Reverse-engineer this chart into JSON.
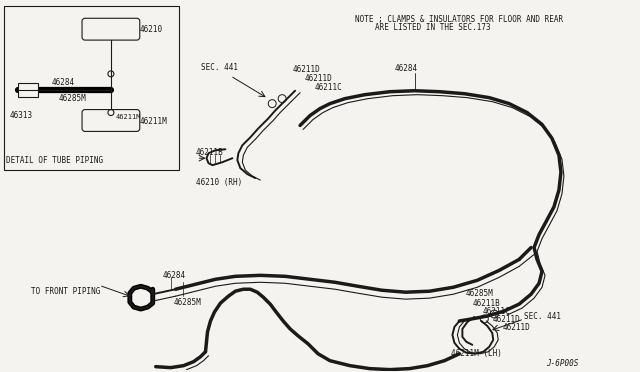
{
  "bg_color": "#f5f3ef",
  "line_color": "#1a1a1a",
  "note_line1": "NOTE ; CLAMPS & INSULATORS FOR FLOOR AND REAR",
  "note_line2": "ARE LISTED IN THE SEC.173",
  "detail_title": "DETAIL OF TUBE PIPING",
  "code": "J-6P00S",
  "fs": 5.5
}
